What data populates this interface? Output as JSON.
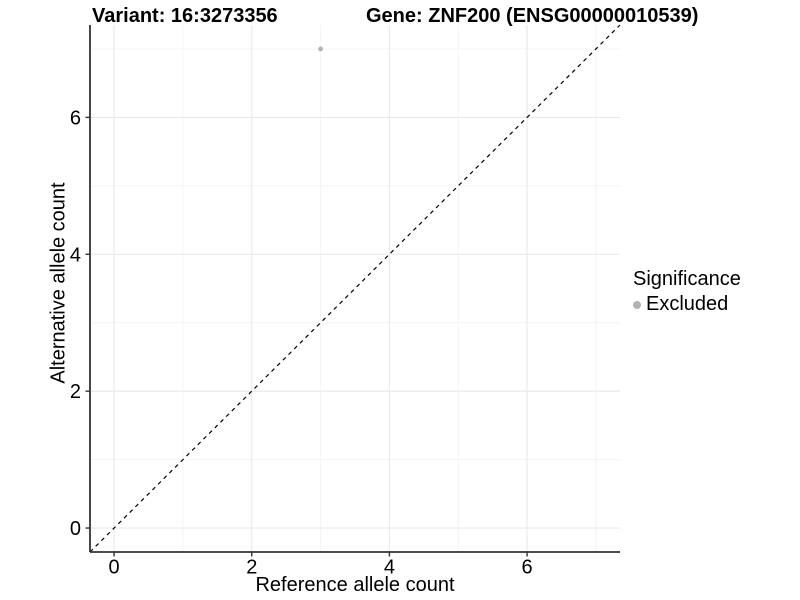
{
  "chart_data": {
    "type": "scatter",
    "title_left": "Variant: 16:3273356",
    "title_right": "Gene: ZNF200 (ENSG00000010539)",
    "xlabel": "Reference allele count",
    "ylabel": "Alternative allele count",
    "xlim": [
      -0.35,
      7.35
    ],
    "ylim": [
      -0.35,
      7.35
    ],
    "x_ticks": [
      0,
      2,
      4,
      6
    ],
    "y_ticks": [
      0,
      2,
      4,
      6
    ],
    "x_minor_ticks": [
      1,
      3,
      5,
      7
    ],
    "y_minor_ticks": [
      1,
      3,
      5,
      7
    ],
    "grid": true,
    "points": [
      {
        "x": 3,
        "y": 7,
        "series": "Excluded"
      }
    ],
    "reference_line": {
      "type": "identity y=x",
      "style": "dashed",
      "color": "#000000"
    },
    "legend": {
      "position": "right",
      "title": "Significance",
      "items": [
        {
          "label": "Excluded",
          "color": "#b3b3b3"
        }
      ]
    },
    "colors": {
      "background": "#ffffff",
      "point_excluded": "#b3b3b3",
      "grid_major": "#e9e9e9",
      "grid_minor": "#f4f4f4",
      "axis_line": "#333333",
      "tick_mark": "#333333",
      "text": "#000000"
    }
  }
}
